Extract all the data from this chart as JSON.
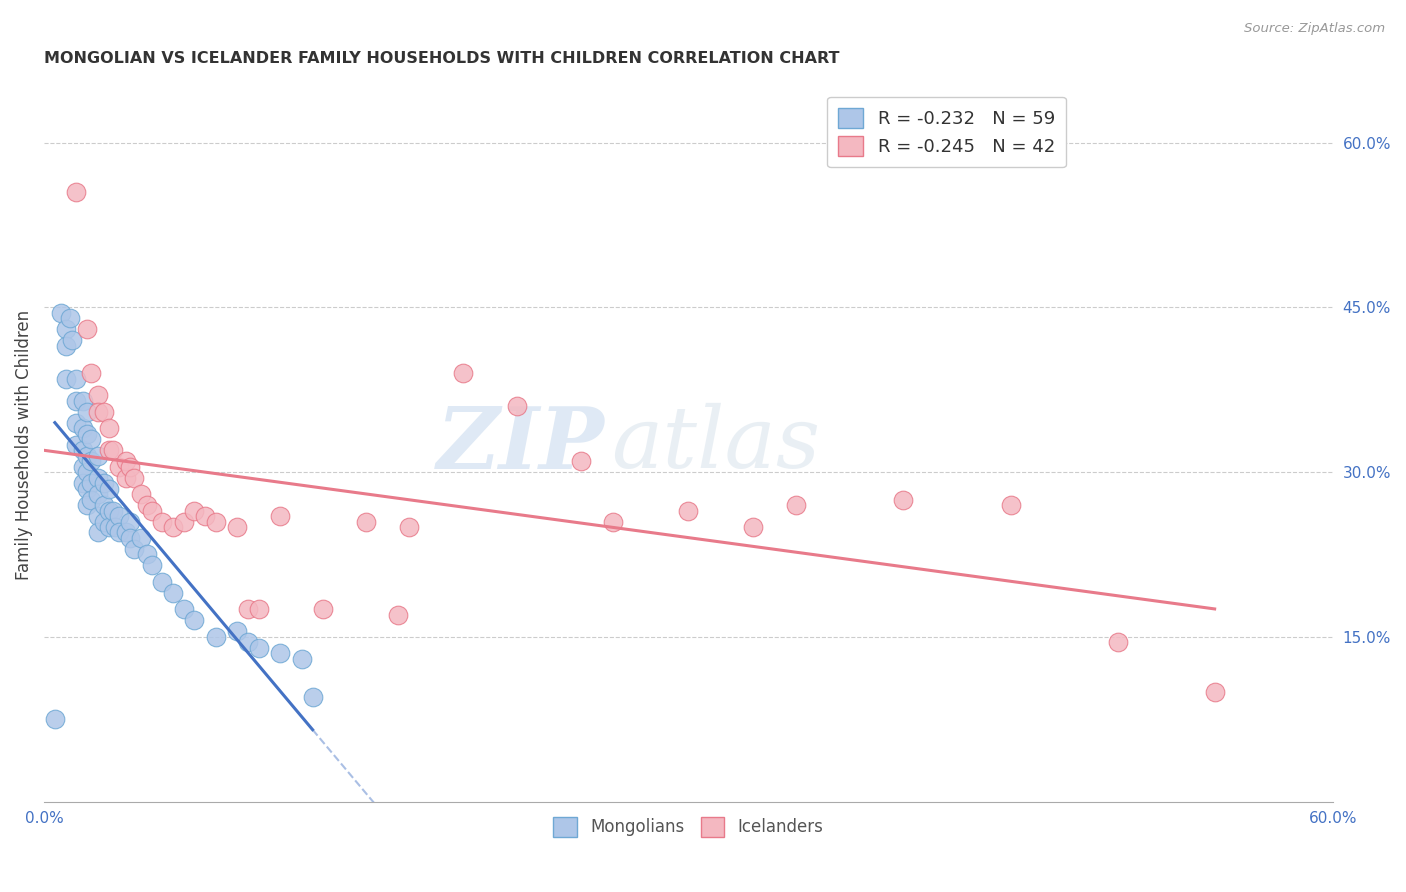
{
  "title": "MONGOLIAN VS ICELANDER FAMILY HOUSEHOLDS WITH CHILDREN CORRELATION CHART",
  "source": "Source: ZipAtlas.com",
  "ylabel": "Family Households with Children",
  "xlim": [
    0.0,
    0.6
  ],
  "ylim": [
    0.0,
    0.65
  ],
  "x_ticks": [
    0.0,
    0.1,
    0.2,
    0.3,
    0.4,
    0.5,
    0.6
  ],
  "x_tick_labels": [
    "0.0%",
    "",
    "",
    "",
    "",
    "",
    "60.0%"
  ],
  "y_ticks_right": [
    0.15,
    0.3,
    0.45,
    0.6
  ],
  "y_tick_labels_right": [
    "15.0%",
    "30.0%",
    "45.0%",
    "60.0%"
  ],
  "mongolian_color": "#aec6e8",
  "icelander_color": "#f4b8c1",
  "mongolian_edge": "#6fa8d4",
  "icelander_edge": "#e87a8a",
  "trend_mongolian_color": "#4472c4",
  "trend_icelander_color": "#e87a8a",
  "background_color": "#ffffff",
  "grid_color": "#cccccc",
  "watermark_zip": "ZIP",
  "watermark_atlas": "atlas",
  "legend_label1": "R = -0.232   N = 59",
  "legend_label2": "R = -0.245   N = 42",
  "legend_label_mongolians": "Mongolians",
  "legend_label_icelanders": "Icelanders",
  "mongolian_x": [
    0.005,
    0.008,
    0.01,
    0.01,
    0.01,
    0.012,
    0.013,
    0.015,
    0.015,
    0.015,
    0.015,
    0.018,
    0.018,
    0.018,
    0.018,
    0.018,
    0.02,
    0.02,
    0.02,
    0.02,
    0.02,
    0.02,
    0.022,
    0.022,
    0.022,
    0.022,
    0.025,
    0.025,
    0.025,
    0.025,
    0.025,
    0.028,
    0.028,
    0.028,
    0.03,
    0.03,
    0.03,
    0.032,
    0.033,
    0.035,
    0.035,
    0.038,
    0.04,
    0.04,
    0.042,
    0.045,
    0.048,
    0.05,
    0.055,
    0.06,
    0.065,
    0.07,
    0.08,
    0.09,
    0.095,
    0.1,
    0.11,
    0.12,
    0.125
  ],
  "mongolian_y": [
    0.075,
    0.445,
    0.43,
    0.415,
    0.385,
    0.44,
    0.42,
    0.385,
    0.365,
    0.345,
    0.325,
    0.365,
    0.34,
    0.32,
    0.305,
    0.29,
    0.355,
    0.335,
    0.315,
    0.3,
    0.285,
    0.27,
    0.33,
    0.31,
    0.29,
    0.275,
    0.315,
    0.295,
    0.28,
    0.26,
    0.245,
    0.29,
    0.27,
    0.255,
    0.285,
    0.265,
    0.25,
    0.265,
    0.25,
    0.26,
    0.245,
    0.245,
    0.255,
    0.24,
    0.23,
    0.24,
    0.225,
    0.215,
    0.2,
    0.19,
    0.175,
    0.165,
    0.15,
    0.155,
    0.145,
    0.14,
    0.135,
    0.13,
    0.095
  ],
  "icelander_x": [
    0.015,
    0.02,
    0.022,
    0.025,
    0.025,
    0.028,
    0.03,
    0.03,
    0.032,
    0.035,
    0.038,
    0.038,
    0.04,
    0.042,
    0.045,
    0.048,
    0.05,
    0.055,
    0.06,
    0.065,
    0.07,
    0.075,
    0.08,
    0.09,
    0.095,
    0.1,
    0.11,
    0.13,
    0.15,
    0.165,
    0.17,
    0.195,
    0.22,
    0.25,
    0.265,
    0.3,
    0.33,
    0.35,
    0.4,
    0.45,
    0.5,
    0.545
  ],
  "icelander_y": [
    0.555,
    0.43,
    0.39,
    0.37,
    0.355,
    0.355,
    0.34,
    0.32,
    0.32,
    0.305,
    0.295,
    0.31,
    0.305,
    0.295,
    0.28,
    0.27,
    0.265,
    0.255,
    0.25,
    0.255,
    0.265,
    0.26,
    0.255,
    0.25,
    0.175,
    0.175,
    0.26,
    0.175,
    0.255,
    0.17,
    0.25,
    0.39,
    0.36,
    0.31,
    0.255,
    0.265,
    0.25,
    0.27,
    0.275,
    0.27,
    0.145,
    0.1
  ]
}
